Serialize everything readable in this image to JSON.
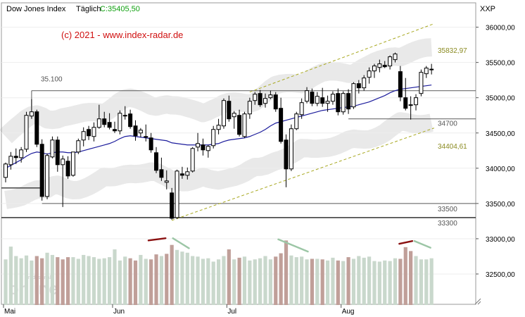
{
  "header": {
    "instrument": "Dow Jones Index",
    "interval": "Täglich",
    "close_label": "C:35405,50",
    "symbol": "XXP"
  },
  "watermark": {
    "text": "(c) 2021 - www.index-radar.de"
  },
  "logo": {
    "text": "tradesignal online"
  },
  "colors": {
    "up": "#ffffff",
    "down": "#000000",
    "ma": "#1c1c9c",
    "level_line": "#5a5a5a",
    "channel": "#a8a820",
    "band": "#e9e9e9",
    "vol_up": "#c9d8cc",
    "vol_down": "#c09f99",
    "red_arrow": "#8a1010",
    "green_arrow": "#9cc6a6",
    "watermark": "#d01010",
    "close_text": "#10a010"
  },
  "chart_data": {
    "type": "candlestick",
    "title": "Dow Jones Index",
    "interval": "daily",
    "ylim": [
      32130,
      36500
    ],
    "yticks": [
      "32500,00",
      "33000,00",
      "33500,00",
      "34000,00",
      "34500,00",
      "35000,00",
      "35500,00",
      "36000,00"
    ],
    "ytick_values": [
      32500,
      33000,
      33500,
      34000,
      34500,
      35000,
      35500,
      36000
    ],
    "xticks": [
      {
        "label": "Mai",
        "index": 0
      },
      {
        "label": "Jun",
        "index": 21
      },
      {
        "label": "Jul",
        "index": 43
      },
      {
        "label": "Aug",
        "index": 65
      }
    ],
    "levels": [
      {
        "label": "35.100",
        "value": 35100
      },
      {
        "label": "34700",
        "value": 34700
      },
      {
        "label": "33500",
        "value": 33500
      },
      {
        "label": "33300",
        "value": 33300
      }
    ],
    "channel_labels": [
      {
        "label": "35832,97",
        "value": 35832.97
      },
      {
        "label": "34404,61",
        "value": 34404.61
      }
    ],
    "series": [
      {
        "name": "OHLC",
        "ohlc": [
          [
            33870,
            34080,
            33800,
            34060
          ],
          [
            34050,
            34230,
            33980,
            34170
          ],
          [
            34170,
            34280,
            34060,
            34150
          ],
          [
            34150,
            34300,
            34080,
            34260
          ],
          [
            34270,
            34800,
            34230,
            34750
          ],
          [
            34740,
            34980,
            34700,
            34800
          ],
          [
            34800,
            34830,
            34300,
            34340
          ],
          [
            34340,
            34410,
            33540,
            33600
          ],
          [
            33600,
            34210,
            33560,
            34180
          ],
          [
            34160,
            34450,
            34140,
            34400
          ],
          [
            34400,
            34450,
            33950,
            34050
          ],
          [
            34050,
            34180,
            33450,
            34130
          ],
          [
            34100,
            34170,
            33850,
            33890
          ],
          [
            33900,
            34210,
            33880,
            34230
          ],
          [
            34230,
            34420,
            34200,
            34390
          ],
          [
            34400,
            34580,
            34310,
            34520
          ],
          [
            34550,
            34600,
            34400,
            34460
          ],
          [
            34450,
            34650,
            34380,
            34580
          ],
          [
            34580,
            34900,
            34560,
            34700
          ],
          [
            34700,
            34800,
            34580,
            34620
          ],
          [
            34650,
            34780,
            34550,
            34580
          ],
          [
            34550,
            34660,
            34500,
            34530
          ],
          [
            34530,
            34820,
            34480,
            34780
          ],
          [
            34750,
            34880,
            34690,
            34750
          ],
          [
            34770,
            34830,
            34560,
            34590
          ],
          [
            34600,
            34680,
            34390,
            34460
          ],
          [
            34500,
            34570,
            34440,
            34540
          ],
          [
            34450,
            34620,
            34380,
            34450
          ],
          [
            34430,
            34500,
            34220,
            34260
          ],
          [
            34220,
            34300,
            33930,
            33970
          ],
          [
            33980,
            34150,
            33820,
            33870
          ],
          [
            33800,
            33970,
            33700,
            33820
          ],
          [
            33650,
            33720,
            33270,
            33290
          ],
          [
            33300,
            33980,
            33280,
            33960
          ],
          [
            33920,
            34020,
            33850,
            33900
          ],
          [
            33900,
            34010,
            33840,
            33950
          ],
          [
            33960,
            34300,
            33940,
            34280
          ],
          [
            34300,
            34500,
            34240,
            34350
          ],
          [
            34330,
            34420,
            34180,
            34260
          ],
          [
            34250,
            34330,
            34150,
            34310
          ],
          [
            34320,
            34600,
            34280,
            34550
          ],
          [
            34550,
            34700,
            34480,
            34610
          ],
          [
            34600,
            34990,
            34560,
            34960
          ],
          [
            34950,
            35030,
            34660,
            34700
          ],
          [
            34730,
            34810,
            34560,
            34780
          ],
          [
            34750,
            34830,
            34450,
            34480
          ],
          [
            34450,
            34800,
            34430,
            34770
          ],
          [
            34770,
            35000,
            34700,
            34950
          ],
          [
            34960,
            35080,
            34900,
            35050
          ],
          [
            35060,
            35110,
            34870,
            34900
          ],
          [
            34920,
            35060,
            34860,
            34990
          ],
          [
            35000,
            35100,
            34980,
            35040
          ],
          [
            35040,
            35080,
            34800,
            34840
          ],
          [
            34850,
            35000,
            34350,
            34380
          ],
          [
            34400,
            34480,
            33730,
            33990
          ],
          [
            33990,
            34620,
            33960,
            34560
          ],
          [
            34560,
            34800,
            34540,
            34770
          ],
          [
            34760,
            34990,
            34700,
            34930
          ],
          [
            34950,
            35150,
            34920,
            35100
          ],
          [
            35080,
            35130,
            34880,
            34920
          ],
          [
            34920,
            35080,
            34880,
            35020
          ],
          [
            35000,
            35140,
            34870,
            34920
          ],
          [
            34920,
            35030,
            34800,
            34950
          ],
          [
            34950,
            35090,
            34900,
            35050
          ],
          [
            35060,
            35130,
            34750,
            34800
          ],
          [
            34800,
            35090,
            34760,
            35060
          ],
          [
            35060,
            35120,
            34770,
            34840
          ],
          [
            34870,
            35220,
            34840,
            35200
          ],
          [
            35200,
            35250,
            35060,
            35140
          ],
          [
            35140,
            35320,
            35100,
            35280
          ],
          [
            35290,
            35430,
            35200,
            35380
          ],
          [
            35380,
            35480,
            35280,
            35450
          ],
          [
            35430,
            35540,
            35360,
            35480
          ],
          [
            35460,
            35520,
            35420,
            35440
          ],
          [
            35450,
            35600,
            35400,
            35580
          ],
          [
            35540,
            35640,
            35500,
            35620
          ],
          [
            35370,
            35450,
            34950,
            35010
          ],
          [
            35000,
            35280,
            34820,
            34850
          ],
          [
            34890,
            35020,
            34690,
            34900
          ],
          [
            34900,
            35050,
            34820,
            35000
          ],
          [
            35060,
            35400,
            35020,
            35360
          ],
          [
            35340,
            35450,
            35280,
            35420
          ],
          [
            35405,
            35480,
            35330,
            35405
          ]
        ]
      },
      {
        "name": "SMA",
        "values": [
          34000,
          34040,
          34080,
          34120,
          34170,
          34210,
          34230,
          34220,
          34200,
          34220,
          34230,
          34230,
          34220,
          34220,
          34230,
          34250,
          34270,
          34290,
          34310,
          34330,
          34350,
          34380,
          34420,
          34450,
          34460,
          34450,
          34440,
          34430,
          34420,
          34410,
          34400,
          34390,
          34360,
          34350,
          34340,
          34330,
          34330,
          34330,
          34330,
          34330,
          34340,
          34350,
          34380,
          34400,
          34410,
          34420,
          34430,
          34450,
          34480,
          34510,
          34550,
          34600,
          34640,
          34660,
          34680,
          34700,
          34720,
          34740,
          34760,
          34780,
          34800,
          34820,
          34830,
          34840,
          34850,
          34860,
          34870,
          34880,
          34900,
          34920,
          34940,
          34970,
          35000,
          35030,
          35070,
          35100,
          35120,
          35130,
          35140,
          35150,
          35160,
          35170,
          35180
        ]
      }
    ],
    "volume": [
      820,
      1050,
      880,
      840,
      890,
      800,
      880,
      840,
      940,
      900,
      860,
      820,
      860,
      860,
      830,
      900,
      880,
      860,
      830,
      840,
      860,
      1000,
      800,
      870,
      840,
      800,
      900,
      830,
      820,
      910,
      880,
      920,
      1080,
      990,
      960,
      940,
      880,
      870,
      830,
      840,
      780,
      820,
      880,
      1000,
      820,
      850,
      870,
      800,
      820,
      840,
      880,
      820,
      870,
      930,
      1160,
      890,
      860,
      870,
      820,
      830,
      830,
      820,
      800,
      850,
      800,
      790,
      860,
      830,
      880,
      850,
      870,
      790,
      780,
      800,
      790,
      840,
      830,
      1040,
      970,
      880,
      820,
      820,
      840
    ],
    "volume_down_index": [
      6,
      7,
      10,
      11,
      12,
      24,
      25,
      28,
      29,
      31,
      32,
      43,
      45,
      52,
      53,
      54,
      59,
      61,
      64,
      66,
      76,
      77,
      78
    ],
    "channel": {
      "upper": {
        "from_index": 47,
        "from_value": 35080,
        "to_index": 82.5,
        "to_value": 36050
      },
      "lower": {
        "from_index": 32,
        "from_value": 33260,
        "to_index": 82.5,
        "to_value": 34570
      }
    },
    "volume_arrows": [
      {
        "color": "red",
        "from_index": 27.5,
        "from_vol": 1160,
        "to_index": 30.8,
        "to_vol": 1200
      },
      {
        "color": "green",
        "from_index": 32.2,
        "from_vol": 1200,
        "to_index": 35.3,
        "to_vol": 1020
      },
      {
        "color": "green",
        "from_index": 52.5,
        "from_vol": 1180,
        "to_index": 58.2,
        "to_vol": 960
      },
      {
        "color": "red",
        "from_index": 75.8,
        "from_vol": 1100,
        "to_index": 78.3,
        "to_vol": 1150
      },
      {
        "color": "green",
        "from_index": 78.7,
        "from_vol": 1150,
        "to_index": 81.8,
        "to_vol": 1030
      }
    ]
  }
}
